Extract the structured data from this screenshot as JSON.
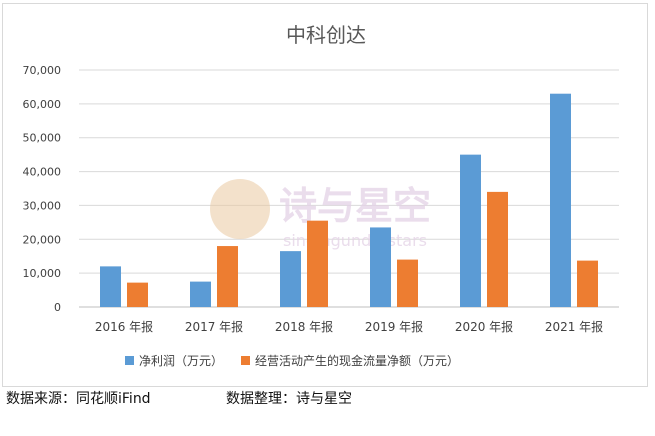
{
  "chart_data": {
    "type": "bar",
    "title": "中科创达",
    "categories": [
      "2016 年报",
      "2017 年报",
      "2018 年报",
      "2019 年报",
      "2020 年报",
      "2021 年报"
    ],
    "series": [
      {
        "name": "净利润（万元）",
        "color": "#5b9bd5",
        "values": [
          12000,
          7500,
          16500,
          23500,
          45000,
          63000
        ]
      },
      {
        "name": "经营活动产生的现金流量净额（万元）",
        "color": "#ed7d31",
        "values": [
          7200,
          18000,
          25500,
          14000,
          34000,
          13700
        ]
      }
    ],
    "ylim": [
      0,
      70000
    ],
    "yticks": [
      "0",
      "10,000",
      "20,000",
      "30,000",
      "40,000",
      "50,000",
      "60,000",
      "70,000"
    ],
    "grid": true,
    "legend_position": "bottom"
  },
  "watermark": {
    "text": "诗与星空",
    "subtext": "singingunderstars"
  },
  "footer": {
    "source": "数据来源：同花顺iFind",
    "organizer": "数据整理：诗与星空"
  }
}
